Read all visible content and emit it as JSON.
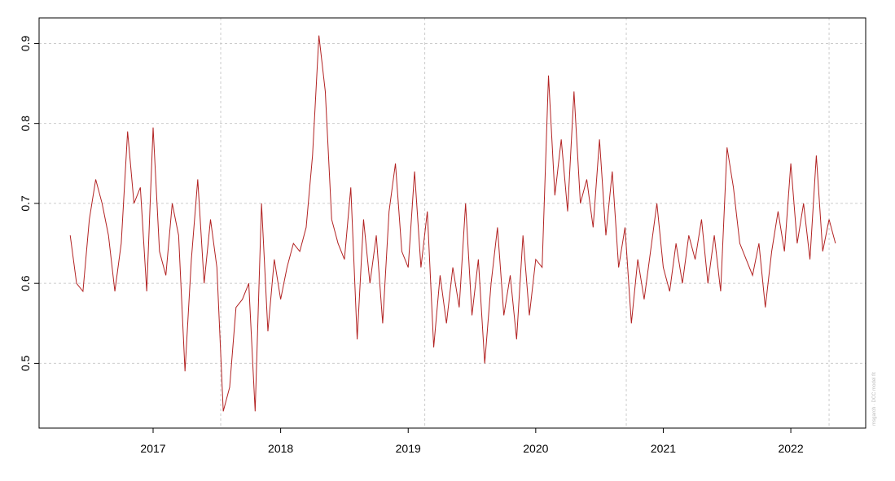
{
  "chart_data": {
    "type": "line",
    "watermark": "msgarch · DCC model fit",
    "x": [
      2016.35,
      2016.4,
      2016.45,
      2016.5,
      2016.55,
      2016.6,
      2016.65,
      2016.7,
      2016.75,
      2016.8,
      2016.85,
      2016.9,
      2016.95,
      2017.0,
      2017.05,
      2017.1,
      2017.15,
      2017.2,
      2017.25,
      2017.3,
      2017.35,
      2017.4,
      2017.45,
      2017.5,
      2017.55,
      2017.6,
      2017.65,
      2017.7,
      2017.75,
      2017.8,
      2017.85,
      2017.9,
      2017.95,
      2018.0,
      2018.05,
      2018.1,
      2018.15,
      2018.2,
      2018.25,
      2018.3,
      2018.35,
      2018.4,
      2018.45,
      2018.5,
      2018.55,
      2018.6,
      2018.65,
      2018.7,
      2018.75,
      2018.8,
      2018.85,
      2018.9,
      2018.95,
      2019.0,
      2019.05,
      2019.1,
      2019.15,
      2019.2,
      2019.25,
      2019.3,
      2019.35,
      2019.4,
      2019.45,
      2019.5,
      2019.55,
      2019.6,
      2019.65,
      2019.7,
      2019.75,
      2019.8,
      2019.85,
      2019.9,
      2019.95,
      2020.0,
      2020.05,
      2020.1,
      2020.15,
      2020.2,
      2020.25,
      2020.3,
      2020.35,
      2020.4,
      2020.45,
      2020.5,
      2020.55,
      2020.6,
      2020.65,
      2020.7,
      2020.75,
      2020.8,
      2020.85,
      2020.9,
      2020.95,
      2021.0,
      2021.05,
      2021.1,
      2021.15,
      2021.2,
      2021.25,
      2021.3,
      2021.35,
      2021.4,
      2021.45,
      2021.5,
      2021.55,
      2021.6,
      2021.65,
      2021.7,
      2021.75,
      2021.8,
      2021.85,
      2021.9,
      2021.95,
      2022.0,
      2022.05,
      2022.1,
      2022.15,
      2022.2,
      2022.25,
      2022.3,
      2022.35
    ],
    "series": [
      {
        "color": "#b22222",
        "values": [
          0.66,
          0.6,
          0.59,
          0.68,
          0.73,
          0.7,
          0.66,
          0.59,
          0.65,
          0.79,
          0.7,
          0.72,
          0.59,
          0.795,
          0.64,
          0.61,
          0.7,
          0.66,
          0.49,
          0.63,
          0.73,
          0.6,
          0.68,
          0.62,
          0.44,
          0.47,
          0.57,
          0.58,
          0.6,
          0.44,
          0.7,
          0.54,
          0.63,
          0.58,
          0.62,
          0.65,
          0.64,
          0.67,
          0.76,
          0.91,
          0.84,
          0.68,
          0.65,
          0.63,
          0.72,
          0.53,
          0.68,
          0.6,
          0.66,
          0.55,
          0.69,
          0.75,
          0.64,
          0.62,
          0.74,
          0.62,
          0.69,
          0.52,
          0.61,
          0.55,
          0.62,
          0.57,
          0.7,
          0.56,
          0.63,
          0.5,
          0.6,
          0.67,
          0.56,
          0.61,
          0.53,
          0.66,
          0.56,
          0.63,
          0.62,
          0.86,
          0.71,
          0.78,
          0.69,
          0.84,
          0.7,
          0.73,
          0.67,
          0.78,
          0.66,
          0.74,
          0.62,
          0.67,
          0.55,
          0.63,
          0.58,
          0.64,
          0.7,
          0.62,
          0.59,
          0.65,
          0.6,
          0.66,
          0.63,
          0.68,
          0.6,
          0.66,
          0.59,
          0.77,
          0.72,
          0.65,
          0.63,
          0.61,
          0.65,
          0.57,
          0.64,
          0.69,
          0.64,
          0.75,
          0.65,
          0.7,
          0.63,
          0.76,
          0.64,
          0.68,
          0.65
        ]
      }
    ],
    "xlim": [
      2016.106,
      2022.587
    ],
    "xticks": [
      2017,
      2018,
      2019,
      2020,
      2021,
      2022
    ],
    "ylim": [
      0.419,
      0.932
    ],
    "yticks": [
      0.5,
      0.6,
      0.7,
      0.8,
      0.9
    ],
    "vlines": [
      2017.53,
      2019.13,
      2020.71,
      2022.3
    ],
    "grid": true
  }
}
